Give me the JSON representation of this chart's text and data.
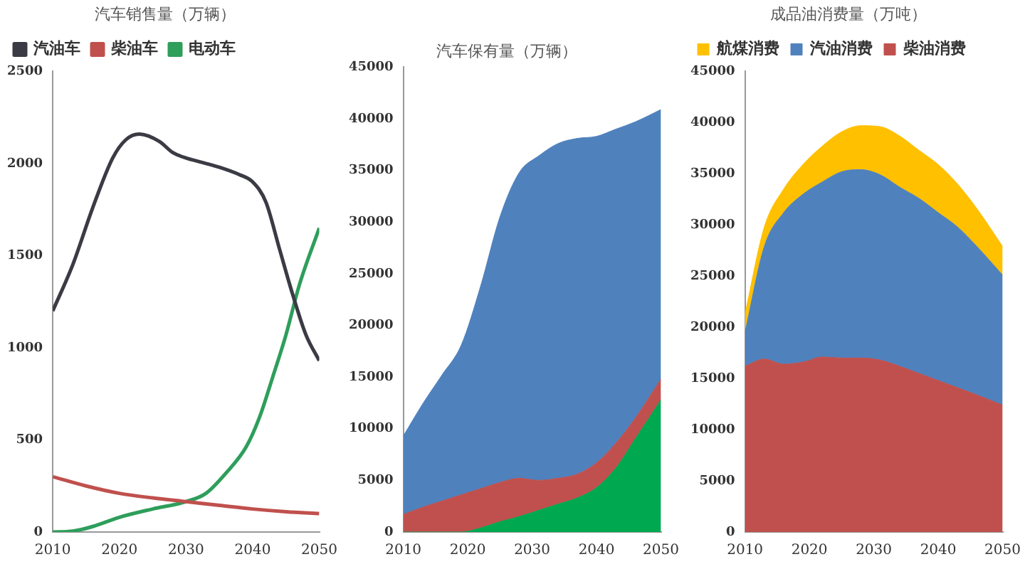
{
  "chart_data": [
    {
      "type": "line",
      "title": "汽车销售量（万辆）",
      "legend": "top",
      "grid": false,
      "marker": "none",
      "line_style": "solid",
      "xlim": [
        2010,
        2050
      ],
      "xticks": [
        2010,
        2020,
        2030,
        2040,
        2050
      ],
      "ylim": [
        0,
        2500
      ],
      "yticks": [
        0,
        500,
        1000,
        1500,
        2000,
        2500
      ],
      "series": [
        {
          "name": "汽油车",
          "color": "#3b3b45",
          "x": [
            2010,
            2013,
            2016,
            2019,
            2021,
            2023,
            2026,
            2028,
            2030,
            2032,
            2035,
            2038,
            2040,
            2042,
            2044,
            2046,
            2048,
            2050
          ],
          "values": [
            1200,
            1450,
            1760,
            2030,
            2130,
            2160,
            2120,
            2060,
            2030,
            2010,
            1980,
            1940,
            1900,
            1790,
            1540,
            1290,
            1070,
            930
          ]
        },
        {
          "name": "柴油车",
          "color": "#c0504d",
          "x": [
            2010,
            2015,
            2020,
            2025,
            2030,
            2035,
            2040,
            2045,
            2050
          ],
          "values": [
            300,
            250,
            210,
            185,
            165,
            145,
            125,
            110,
            100
          ]
        },
        {
          "name": "电动车",
          "color": "#2e9e5b",
          "x": [
            2010,
            2013,
            2016,
            2020,
            2025,
            2030,
            2033,
            2036,
            2039,
            2041,
            2043,
            2045,
            2047,
            2050
          ],
          "values": [
            0,
            5,
            30,
            80,
            125,
            165,
            210,
            320,
            460,
            620,
            840,
            1070,
            1340,
            1650
          ]
        }
      ]
    },
    {
      "type": "area",
      "title": "汽车保有量（万辆）",
      "stacked": true,
      "legend": false,
      "grid": false,
      "xlim": [
        2010,
        2050
      ],
      "xticks": [
        2010,
        2020,
        2030,
        2040,
        2050
      ],
      "ylim": [
        0,
        45000
      ],
      "yticks": [
        0,
        5000,
        10000,
        15000,
        20000,
        25000,
        30000,
        35000,
        40000,
        45000
      ],
      "x": [
        2010,
        2013,
        2016,
        2019,
        2022,
        2025,
        2028,
        2031,
        2034,
        2037,
        2040,
        2043,
        2046,
        2050
      ],
      "series": [
        {
          "color": "#00a84f",
          "values": [
            0,
            0,
            0,
            0,
            400,
            1000,
            1500,
            2100,
            2700,
            3300,
            4300,
            6200,
            9000,
            12800
          ]
        },
        {
          "color": "#c0504d",
          "values": [
            1700,
            2400,
            3000,
            3600,
            3800,
            3800,
            3700,
            2900,
            2500,
            2300,
            2400,
            2400,
            2000,
            2000
          ]
        },
        {
          "color": "#4f81bd",
          "values": [
            7600,
            10000,
            12200,
            14500,
            19600,
            25700,
            29600,
            31400,
            32400,
            32500,
            31600,
            30400,
            28700,
            26100
          ]
        }
      ]
    },
    {
      "type": "area",
      "title": "成品油消费量（万吨）",
      "stacked": true,
      "legend": "top",
      "grid": false,
      "xlim": [
        2010,
        2050
      ],
      "xticks": [
        2010,
        2020,
        2030,
        2040,
        2050
      ],
      "ylim": [
        0,
        45000
      ],
      "yticks": [
        0,
        5000,
        10000,
        15000,
        20000,
        25000,
        30000,
        35000,
        40000,
        45000
      ],
      "x": [
        2010,
        2013,
        2016,
        2019,
        2022,
        2025,
        2028,
        2031,
        2034,
        2037,
        2040,
        2043,
        2046,
        2050
      ],
      "series": [
        {
          "name": "柴油消费",
          "color": "#c0504d",
          "values": [
            16200,
            16900,
            16400,
            16600,
            17100,
            17000,
            17000,
            16800,
            16200,
            15500,
            14800,
            14100,
            13400,
            12400
          ]
        },
        {
          "name": "汽油消费",
          "color": "#4f81bd",
          "values": [
            3300,
            11000,
            14800,
            16400,
            17100,
            18200,
            18400,
            18100,
            17500,
            17100,
            16400,
            15700,
            14500,
            12700
          ]
        },
        {
          "name": "航煤消费",
          "color": "#ffc000",
          "values": [
            1800,
            1900,
            2300,
            2900,
            3500,
            3900,
            4300,
            4700,
            5000,
            4700,
            4700,
            4200,
            3700,
            2800
          ]
        }
      ]
    }
  ]
}
